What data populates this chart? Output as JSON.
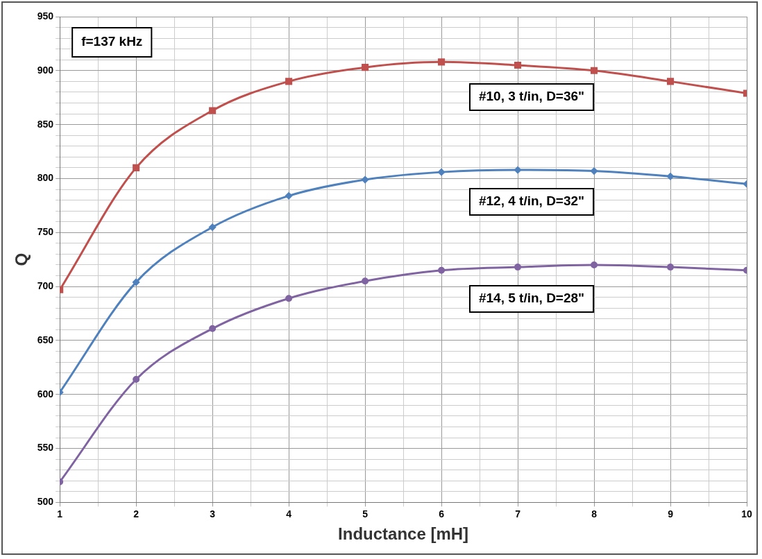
{
  "chart_data": {
    "type": "line",
    "xlabel": "Inductance [mH]",
    "ylabel": "Q",
    "x": [
      1,
      2,
      3,
      4,
      5,
      6,
      7,
      8,
      9,
      10
    ],
    "series": [
      {
        "name": "#10, 3 t/in, D=36\"",
        "color": "#c0504d",
        "marker": "square",
        "values": [
          697,
          810,
          863,
          890,
          903,
          908,
          905,
          900,
          890,
          879
        ]
      },
      {
        "name": "#12, 4 t/in, D=32\"",
        "color": "#4f81bd",
        "marker": "diamond",
        "values": [
          602,
          704,
          755,
          784,
          799,
          806,
          808,
          807,
          802,
          795
        ]
      },
      {
        "name": "#14, 5 t/in, D=28\"",
        "color": "#8064a2",
        "marker": "circle",
        "values": [
          519,
          614,
          661,
          689,
          705,
          715,
          718,
          720,
          718,
          715
        ]
      }
    ],
    "xlim": [
      1,
      10
    ],
    "xticks": [
      1,
      {
        "value": 1.5,
        "label": null
      },
      2,
      {
        "value": 2.5,
        "label": null
      },
      3,
      {
        "value": 3.5,
        "label": null
      },
      4,
      {
        "value": 4.5,
        "label": null
      },
      5,
      {
        "value": 5.5,
        "label": null
      },
      6,
      {
        "value": 6.5,
        "label": null
      },
      7,
      {
        "value": 7.5,
        "label": null
      },
      8,
      {
        "value": 8.5,
        "label": null
      },
      9,
      {
        "value": 9.5,
        "label": null
      },
      10
    ],
    "ylim": [
      500,
      950
    ],
    "yticks": [
      500,
      {
        "value": 510,
        "label": null
      },
      {
        "value": 520,
        "label": null
      },
      {
        "value": 530,
        "label": null
      },
      {
        "value": 540,
        "label": null
      },
      550,
      {
        "value": 560,
        "label": null
      },
      {
        "value": 570,
        "label": null
      },
      {
        "value": 580,
        "label": null
      },
      {
        "value": 590,
        "label": null
      },
      600,
      {
        "value": 610,
        "label": null
      },
      {
        "value": 620,
        "label": null
      },
      {
        "value": 630,
        "label": null
      },
      {
        "value": 640,
        "label": null
      },
      650,
      {
        "value": 660,
        "label": null
      },
      {
        "value": 670,
        "label": null
      },
      {
        "value": 680,
        "label": null
      },
      {
        "value": 690,
        "label": null
      },
      700,
      {
        "value": 710,
        "label": null
      },
      {
        "value": 720,
        "label": null
      },
      {
        "value": 730,
        "label": null
      },
      {
        "value": 740,
        "label": null
      },
      750,
      {
        "value": 760,
        "label": null
      },
      {
        "value": 770,
        "label": null
      },
      {
        "value": 780,
        "label": null
      },
      {
        "value": 790,
        "label": null
      },
      800,
      {
        "value": 810,
        "label": null
      },
      {
        "value": 820,
        "label": null
      },
      {
        "value": 830,
        "label": null
      },
      {
        "value": 840,
        "label": null
      },
      850,
      {
        "value": 860,
        "label": null
      },
      {
        "value": 870,
        "label": null
      },
      {
        "value": 880,
        "label": null
      },
      {
        "value": 890,
        "label": null
      },
      900,
      {
        "value": 910,
        "label": null
      },
      {
        "value": 920,
        "label": null
      },
      {
        "value": 930,
        "label": null
      },
      {
        "value": 940,
        "label": null
      },
      950
    ],
    "grid": true,
    "legend": false,
    "annotations": [
      "f=137 kHz"
    ]
  }
}
